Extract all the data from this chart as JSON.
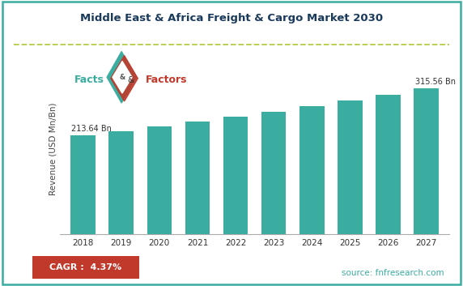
{
  "title": "Middle East & Africa Freight & Cargo Market 2030",
  "years": [
    "2018",
    "2019",
    "2020",
    "2021",
    "2022",
    "2023",
    "2024",
    "2025",
    "2026",
    "2027"
  ],
  "values": [
    213.64,
    222.99,
    232.73,
    242.89,
    253.5,
    264.58,
    276.17,
    288.28,
    301.52,
    315.56
  ],
  "bar_color": "#3aada0",
  "ylabel": "Revenue (USD Mn/Bn)",
  "ylim": [
    0,
    370
  ],
  "first_label": "213.64 Bn",
  "last_label": "315.56 Bn",
  "cagr_text": "CAGR :  4.37%",
  "source_text": "source: fnfresearch.com",
  "bg_color": "#ffffff",
  "border_color": "#3aada0",
  "dashed_line_color": "#b5cc47",
  "title_color": "#1a3a5c",
  "cagr_bg": "#c0392b",
  "cagr_fg": "#ffffff",
  "source_color": "#3aada0",
  "logo_facts_color": "#3aada0",
  "logo_factors_color": "#c0392b",
  "logo_amp_color": "#333333"
}
